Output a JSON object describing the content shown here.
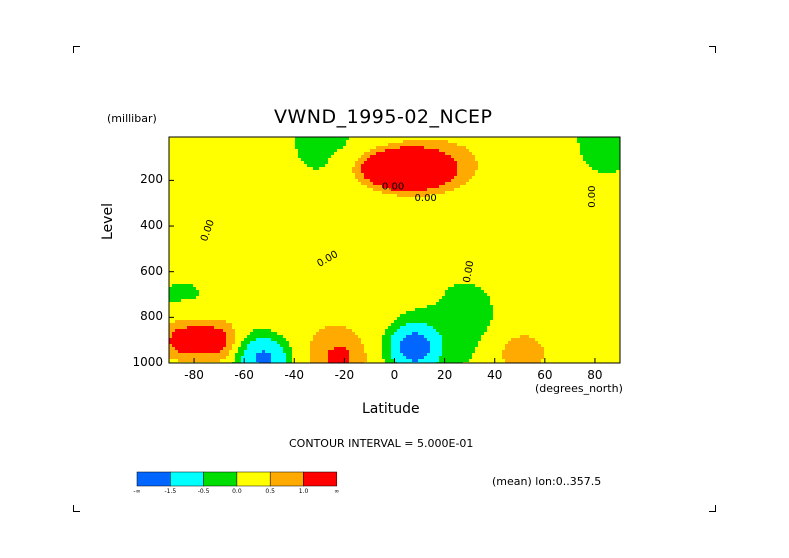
{
  "chart_data": {
    "type": "heatmap",
    "title": "VWND_1995-02_NCEP",
    "xlabel": "Latitude",
    "x_unit": "(degrees_north)",
    "ylabel": "Level",
    "y_unit": "(millibar)",
    "xlim": [
      -90,
      90
    ],
    "ylim": [
      1000,
      10
    ],
    "x_ticks": [
      "-80",
      "-60",
      "-40",
      "-20",
      "0",
      "20",
      "40",
      "60",
      "80"
    ],
    "x_tick_values": [
      -80,
      -60,
      -40,
      -20,
      0,
      20,
      40,
      60,
      80
    ],
    "y_ticks": [
      "200",
      "400",
      "600",
      "800",
      "1000"
    ],
    "y_tick_values": [
      200,
      400,
      600,
      800,
      1000
    ],
    "contour_labels": [
      "0.00",
      "0.00",
      "0.00",
      "0.00",
      "0.00",
      "0.00"
    ],
    "contour_interval": "CONTOUR INTERVAL = 5.000E-01",
    "subset_note": "(mean) lon:0..357.5",
    "colorbar": {
      "labels": [
        "-∞",
        "-1.5",
        "-0.5",
        "0.0",
        "0.5",
        "1.0",
        "∞"
      ],
      "colors": [
        "#0066ff",
        "#00ffff",
        "#00dd00",
        "#ffff00",
        "#ffaa00",
        "#ff0000"
      ]
    },
    "field_description": {
      "background_level": "0.0 to 0.5",
      "features": [
        {
          "kind": "max",
          "lat": 5,
          "level": 150,
          "value": 5.0
        },
        {
          "kind": "min",
          "lat": 8,
          "level": 930,
          "value": -2.5
        },
        {
          "kind": "min",
          "lat": -52,
          "level": 980,
          "value": -2.0
        },
        {
          "kind": "max",
          "lat": -85,
          "level": 900,
          "value": 1.3
        },
        {
          "kind": "max",
          "lat": -72,
          "level": 900,
          "value": 1.3
        },
        {
          "kind": "max",
          "lat": 50,
          "level": 960,
          "value": 0.8
        },
        {
          "kind": "max",
          "lat": -22,
          "level": 980,
          "value": 0.8
        }
      ]
    }
  }
}
